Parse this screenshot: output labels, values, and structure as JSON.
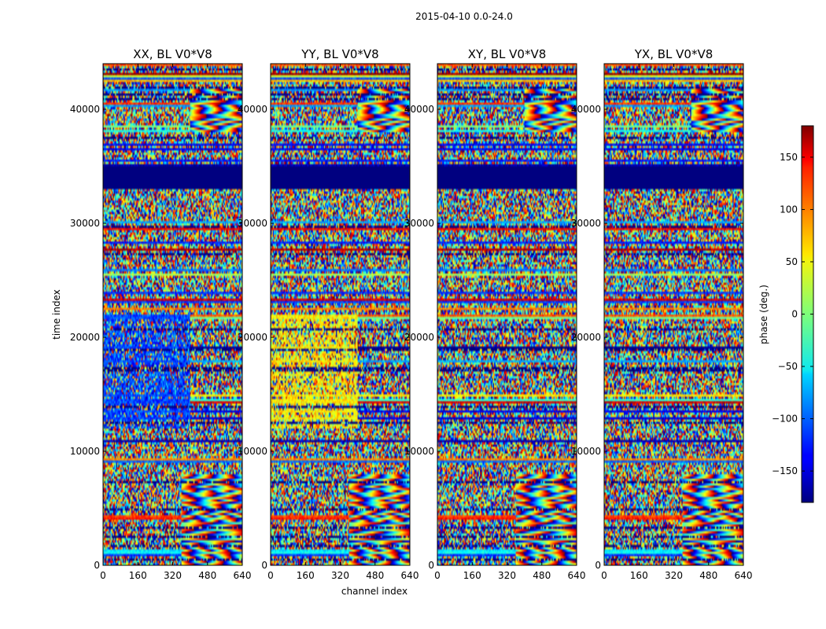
{
  "chart_data": {
    "type": "heatmap",
    "suptitle": "2015-04-10 0.0-24.0",
    "xlabel": "channel index",
    "ylabel": "time index",
    "xlim": [
      0,
      640
    ],
    "ylim": [
      0,
      44000
    ],
    "xticks": [
      0,
      160,
      320,
      480,
      640
    ],
    "yticks": [
      0,
      10000,
      20000,
      30000,
      40000
    ],
    "panels": [
      {
        "title": "XX, BL V0*V8",
        "mean_phase_low_channels": -110
      },
      {
        "title": "YY, BL V0*V8",
        "mean_phase_low_channels": 50
      },
      {
        "title": "XY, BL V0*V8",
        "mean_phase_low_channels": 0
      },
      {
        "title": "YX, BL V0*V8",
        "mean_phase_low_channels": 0
      }
    ],
    "flagged_time_range": [
      33000,
      35000
    ],
    "flagged_phase": -180,
    "fringe_regions": [
      {
        "time_range": [
          0,
          8000
        ],
        "channels": [
          360,
          640
        ]
      },
      {
        "time_range": [
          38000,
          42000
        ],
        "channels": [
          400,
          640
        ]
      }
    ],
    "colorbar": {
      "label": "phase (deg.)",
      "range": [
        -180,
        180
      ],
      "ticks": [
        -150,
        -100,
        -50,
        0,
        50,
        100,
        150
      ],
      "colormap": "jet"
    }
  }
}
